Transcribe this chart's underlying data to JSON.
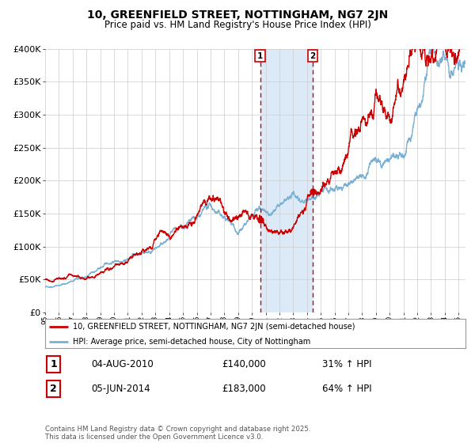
{
  "title": "10, GREENFIELD STREET, NOTTINGHAM, NG7 2JN",
  "subtitle": "Price paid vs. HM Land Registry's House Price Index (HPI)",
  "legend_line1": "10, GREENFIELD STREET, NOTTINGHAM, NG7 2JN (semi-detached house)",
  "legend_line2": "HPI: Average price, semi-detached house, City of Nottingham",
  "annotation1_date": "04-AUG-2010",
  "annotation1_price": "£140,000",
  "annotation1_hpi": "31% ↑ HPI",
  "annotation2_date": "05-JUN-2014",
  "annotation2_price": "£183,000",
  "annotation2_hpi": "64% ↑ HPI",
  "footer": "Contains HM Land Registry data © Crown copyright and database right 2025.\nThis data is licensed under the Open Government Licence v3.0.",
  "red_color": "#cc0000",
  "blue_color": "#7ab0d4",
  "highlight_color": "#dceaf7",
  "grid_color": "#cccccc",
  "ylabel_ticks": [
    "£0",
    "£50K",
    "£100K",
    "£150K",
    "£200K",
    "£250K",
    "£300K",
    "£350K",
    "£400K"
  ],
  "ytick_vals": [
    0,
    50000,
    100000,
    150000,
    200000,
    250000,
    300000,
    350000,
    400000
  ],
  "year_start": 1995,
  "year_end": 2025,
  "sale1_year": 2010.6,
  "sale1_price": 140000,
  "sale2_year": 2014.42,
  "sale2_price": 183000
}
